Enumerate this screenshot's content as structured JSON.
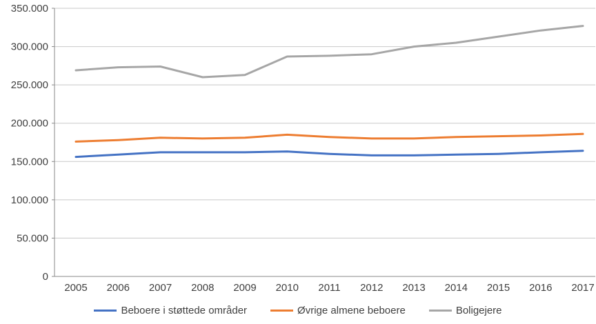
{
  "chart_data": {
    "type": "line",
    "title": "",
    "xlabel": "",
    "ylabel": "",
    "grid": true,
    "legend_position": "bottom",
    "categories": [
      "2005",
      "2006",
      "2007",
      "2008",
      "2009",
      "2010",
      "2011",
      "2012",
      "2013",
      "2014",
      "2015",
      "2016",
      "2017"
    ],
    "series": [
      {
        "name": "Beboere i støttede områder",
        "color": "#4472C4",
        "values": [
          156000,
          159000,
          162000,
          162000,
          162000,
          163000,
          160000,
          158000,
          158000,
          159000,
          160000,
          162000,
          164000
        ]
      },
      {
        "name": "Øvrige almene beboere",
        "color": "#ED7D31",
        "values": [
          176000,
          178000,
          181000,
          180000,
          181000,
          185000,
          182000,
          180000,
          180000,
          182000,
          183000,
          184000,
          186000
        ]
      },
      {
        "name": "Boligejere",
        "color": "#A6A6A6",
        "values": [
          269000,
          273000,
          274000,
          260000,
          263000,
          287000,
          288000,
          290000,
          300000,
          305000,
          313000,
          321000,
          327000
        ]
      }
    ],
    "y_axis": {
      "min": 0,
      "max": 350000,
      "step": 50000,
      "tick_labels": [
        "0",
        "50.000",
        "100.000",
        "150.000",
        "200.000",
        "250.000",
        "300.000",
        "350.000"
      ]
    }
  },
  "style": {
    "gridline_color": "#C8C8C8",
    "axis_color": "#898989",
    "label_color": "#3f3f3f"
  }
}
